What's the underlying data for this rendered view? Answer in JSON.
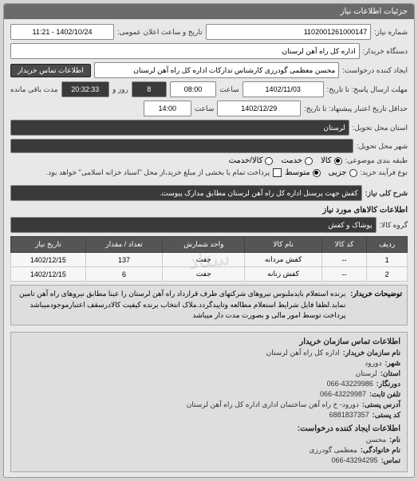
{
  "panel": {
    "title": "جزئیات اطلاعات نیاز"
  },
  "fields": {
    "request_no_label": "شماره نیاز:",
    "request_no": "1102001261000147",
    "public_announce_label": "تاریخ و ساعت اعلان عمومی:",
    "public_announce": "1402/10/24 - 11:21",
    "buyer_unit_label": "دستگاه خریدار:",
    "buyer_unit": "اداره کل راه آهن لرستان",
    "creator_label": "ایجاد کننده درخواست:",
    "creator": "محسن معظمی گودرزی کارشناس تدارکات اداره کل راه آهن لرستان",
    "contact_btn": "اطلاعات تماس خریدار",
    "deadline_reply_label": "مهلت ارسال پاسخ: تا تاریخ:",
    "deadline_reply_date": "1402/11/03",
    "deadline_time_label": "ساعت",
    "deadline_reply_time": "08:00",
    "days_label": "روز و",
    "days_left": "8",
    "remaining_label": "مدت باقی مانده",
    "remaining_time": "20:32:33",
    "validity_label": "حداقل تاریخ اعتبار پیشنهاد: تا تاریخ:",
    "validity_date": "1402/12/29",
    "validity_time": "14:00",
    "province_label": "استان محل تحویل:",
    "province": "لرستان",
    "city_label": "شهر محل تحویل:",
    "city": "",
    "group_label": "طبقه بندی موضوعی:",
    "groups": {
      "goods": "کالا",
      "service": "خدمت",
      "both": "کالا/خدمت"
    },
    "process_label": "نوع فرآیند خرید:",
    "process": {
      "low": "جزیی",
      "mid": "متوسط"
    },
    "process_note": "پرداخت تمام یا بخشی از مبلغ خرید،از محل \"اسناد خزانه اسلامی\" خواهد بود.",
    "summary_label": "شرح کلی نیاز:",
    "summary": "کفش جهت پرسنل اداره کل راه آهن لرستان مطابق مدارک پیوست."
  },
  "goods": {
    "section_title": "اطلاعات کالاهای مورد نیاز",
    "group_label": "گروه کالا:",
    "group": "پوشاک و کفش",
    "columns": [
      "ردیف",
      "کد کالا",
      "نام کالا",
      "واحد شمارش",
      "تعداد / مقدار",
      "تاریخ نیاز"
    ],
    "rows": [
      [
        "1",
        "--",
        "کفش مردانه",
        "جفت",
        "137",
        "1402/12/15"
      ],
      [
        "2",
        "--",
        "کفش زنانه",
        "جفت",
        "6",
        "1402/12/15"
      ]
    ]
  },
  "desc": {
    "label": "توضیحات خریدار:",
    "text": "برنده استعلام بایدملبوس نیروهای شرکتهای طرف قرارداد راه آهن لرستان را عینا مطابق نیروهای راه آهن تامین نماید.لطفا فایل شرایط استعلام مطالعه وتاییدگردد.ملاک انتخاب برنده کیفیت کالادرسقف اعتبارموجودمیباشد پرداخت توسط امور مالی و بصورت مدت دار میباشد"
  },
  "org": {
    "title": "اطلاعات تماس سازمان خریدار",
    "lines": [
      {
        "k": "نام سازمان خریدار:",
        "v": "اداره کل راه آهن لرستان"
      },
      {
        "k": "شهر:",
        "v": "دورود"
      },
      {
        "k": "استان:",
        "v": "لرستان"
      },
      {
        "k": "دورنگار:",
        "v": "066-43229986"
      },
      {
        "k": "تلفن ثابت:",
        "v": "066-43229987"
      },
      {
        "k": "آدرس پستی:",
        "v": "دورود- خ راه آهن ساختمان اداری اداره کل راه آهن لرستان"
      },
      {
        "k": "کد پستی:",
        "v": "6881837357"
      }
    ],
    "contact_title": "اطلاعات ایجاد کننده درخواست:",
    "contact": [
      {
        "k": "نام:",
        "v": "محسن"
      },
      {
        "k": "نام خانوادگی:",
        "v": "معظمی گودرزی"
      },
      {
        "k": "تماس:",
        "v": "066-43294295"
      }
    ]
  },
  "watermark": "ستاد"
}
